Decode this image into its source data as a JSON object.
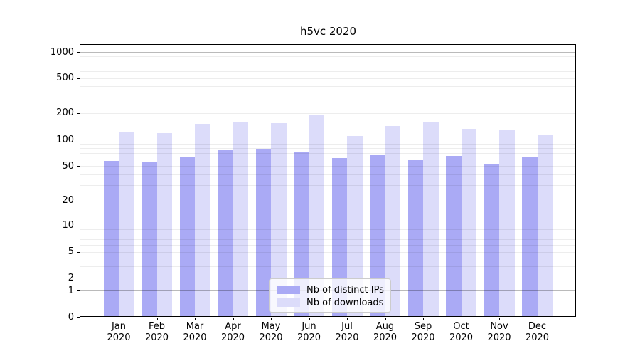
{
  "chart_data": {
    "type": "bar",
    "title": "h5vc 2020",
    "categories": [
      "Jan 2020",
      "Feb 2020",
      "Mar 2020",
      "Apr 2020",
      "May 2020",
      "Jun 2020",
      "Jul 2020",
      "Aug 2020",
      "Sep 2020",
      "Oct 2020",
      "Nov 2020",
      "Dec 2020"
    ],
    "series": [
      {
        "name": "Nb of distinct IPs",
        "color": "#aaaaf5",
        "values": [
          57,
          55,
          64,
          77,
          78,
          71,
          62,
          66,
          58,
          65,
          52,
          63
        ]
      },
      {
        "name": "Nb of downloads",
        "color": "#dcdcfa",
        "values": [
          121,
          118,
          151,
          160,
          152,
          188,
          109,
          141,
          157,
          133,
          128,
          114
        ]
      }
    ],
    "yscale": "symlog",
    "yticks": [
      0,
      1,
      2,
      5,
      10,
      20,
      50,
      100,
      200,
      500,
      1000
    ],
    "ylim": [
      0,
      1300
    ],
    "xlabel": "",
    "ylabel": "",
    "grid": "both",
    "legend_position": "lower center"
  },
  "colors": {
    "major_grid": "rgba(0,0,0,0.27)",
    "minor_grid": "rgba(0,0,0,0.07)",
    "axis": "#000000",
    "background": "#ffffff"
  }
}
